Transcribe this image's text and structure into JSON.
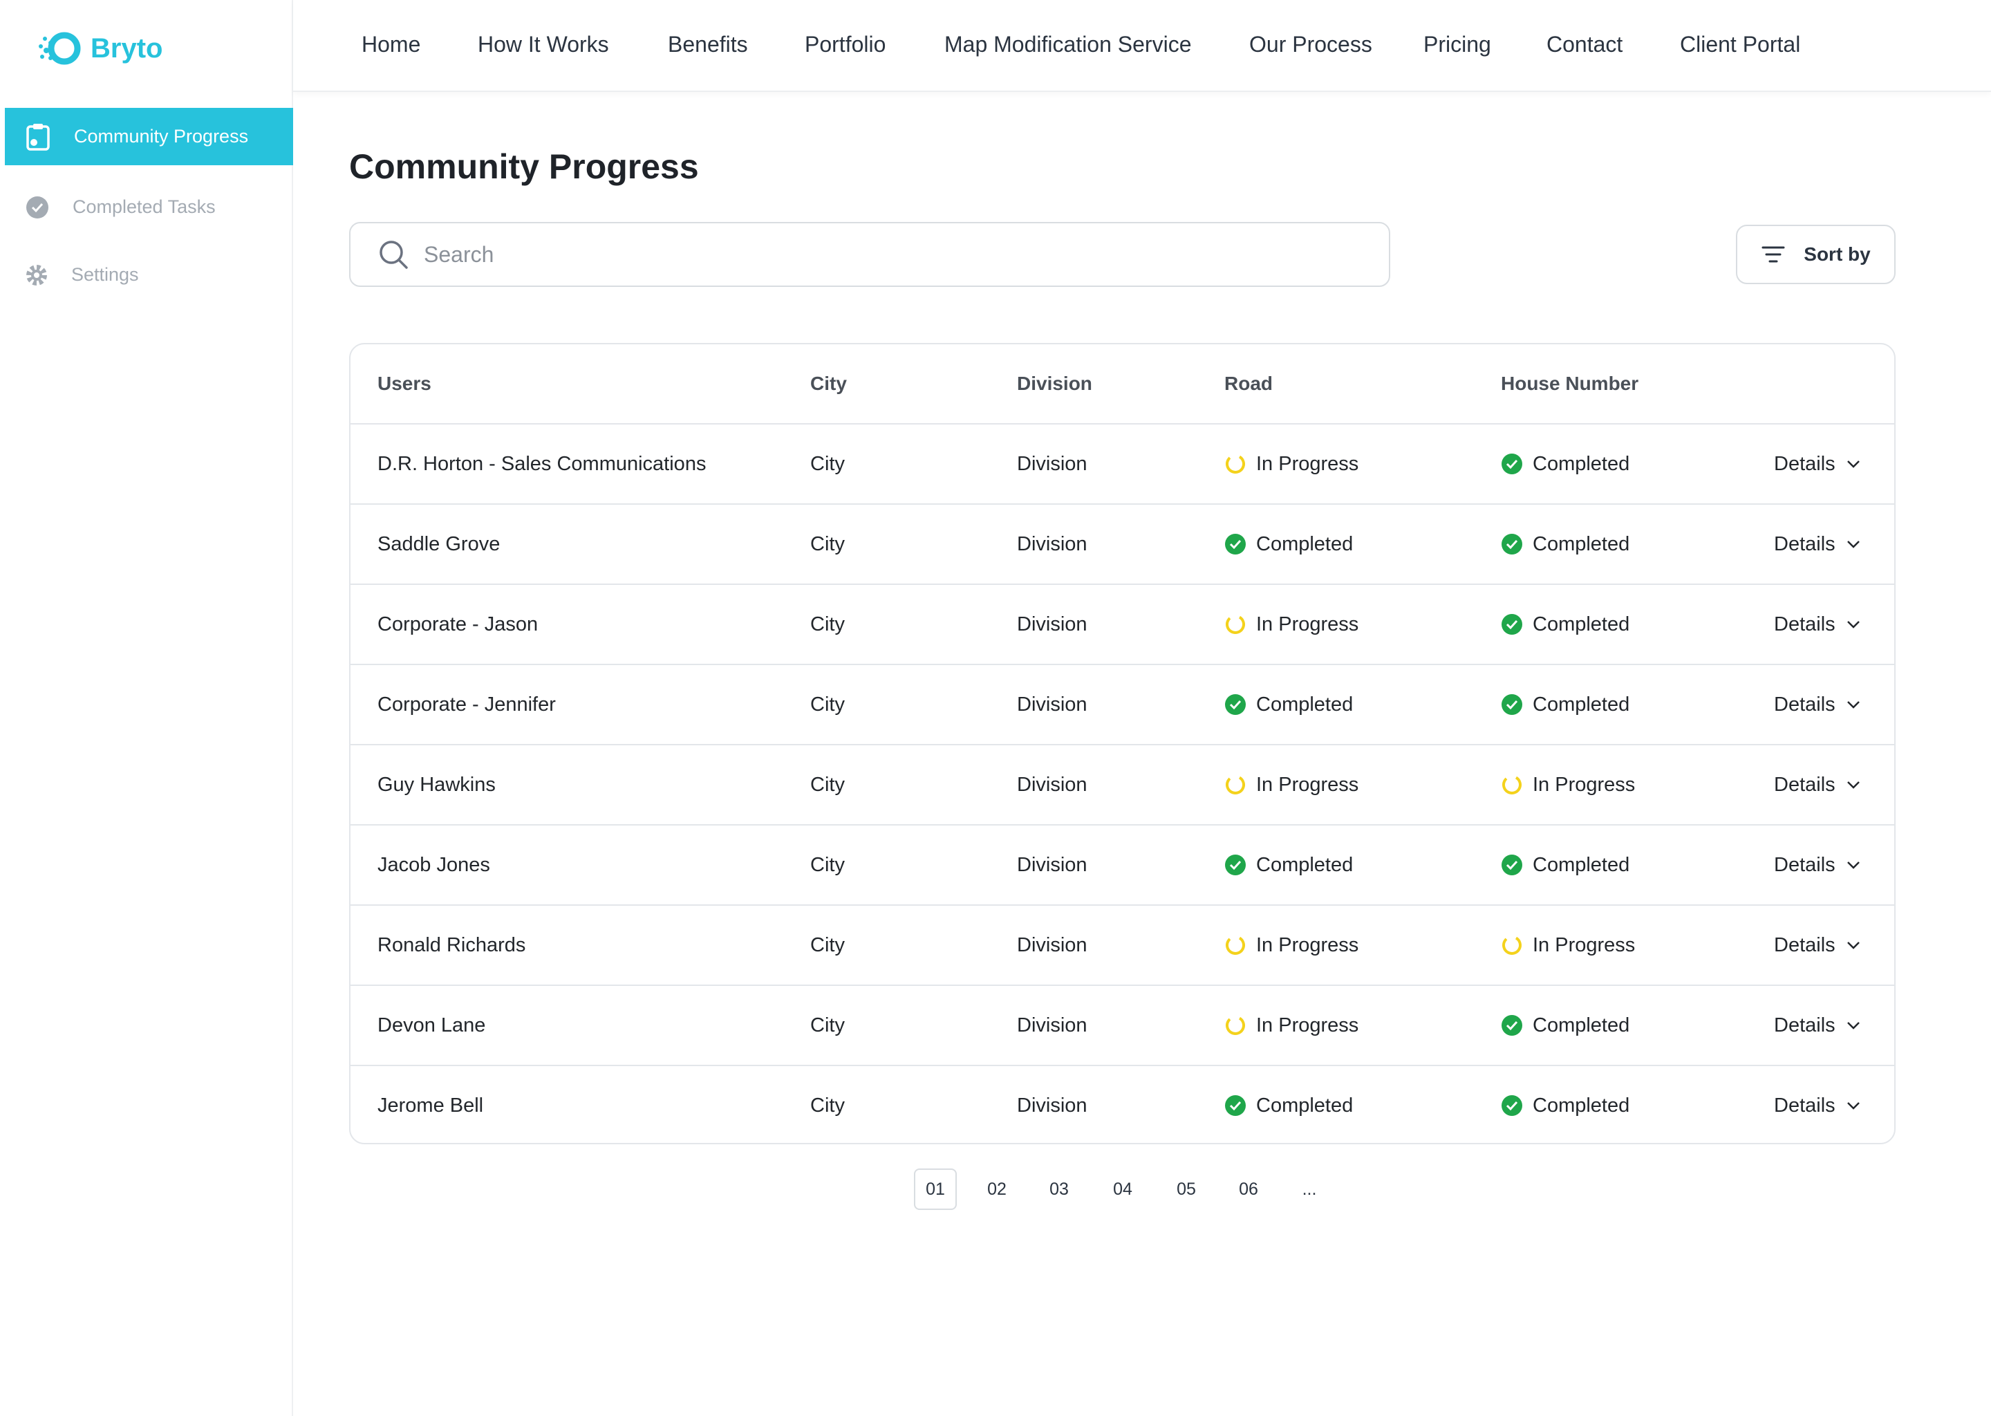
{
  "brand": "Bryto",
  "nav": [
    "Home",
    "How It Works",
    "Benefits",
    "Portfolio",
    "Map Modification Service",
    "Our Process",
    "Pricing",
    "Contact",
    "Client Portal"
  ],
  "sidebar": [
    "Community Progress",
    "Completed Tasks",
    "Settings"
  ],
  "page_title": "Community Progress",
  "search_placeholder": "Search",
  "sort_label": "Sort by",
  "table": {
    "headers": [
      "Users",
      "City",
      "Division",
      "Road",
      "House Number"
    ],
    "rows": [
      {
        "user": "D.R. Horton - Sales Communications",
        "city": "City",
        "division": "Division",
        "road": "In Progress",
        "house": "Completed",
        "action": "Details"
      },
      {
        "user": "Saddle Grove",
        "city": "City",
        "division": "Division",
        "road": "Completed",
        "house": "Completed",
        "action": "Details"
      },
      {
        "user": "Corporate - Jason",
        "city": "City",
        "division": "Division",
        "road": "In Progress",
        "house": "Completed",
        "action": "Details"
      },
      {
        "user": "Corporate - Jennifer",
        "city": "City",
        "division": "Division",
        "road": "Completed",
        "house": "Completed",
        "action": "Details"
      },
      {
        "user": "Guy Hawkins",
        "city": "City",
        "division": "Division",
        "road": "In Progress",
        "house": "In Progress",
        "action": "Details"
      },
      {
        "user": "Jacob Jones",
        "city": "City",
        "division": "Division",
        "road": "Completed",
        "house": "Completed",
        "action": "Details"
      },
      {
        "user": "Ronald Richards",
        "city": "City",
        "division": "Division",
        "road": "In Progress",
        "house": "In Progress",
        "action": "Details"
      },
      {
        "user": "Devon Lane",
        "city": "City",
        "division": "Division",
        "road": "In Progress",
        "house": "Completed",
        "action": "Details"
      },
      {
        "user": "Jerome Bell",
        "city": "City",
        "division": "Division",
        "road": "Completed",
        "house": "Completed",
        "action": "Details"
      }
    ]
  },
  "pagination": [
    "01",
    "02",
    "03",
    "04",
    "05",
    "06",
    "..."
  ]
}
